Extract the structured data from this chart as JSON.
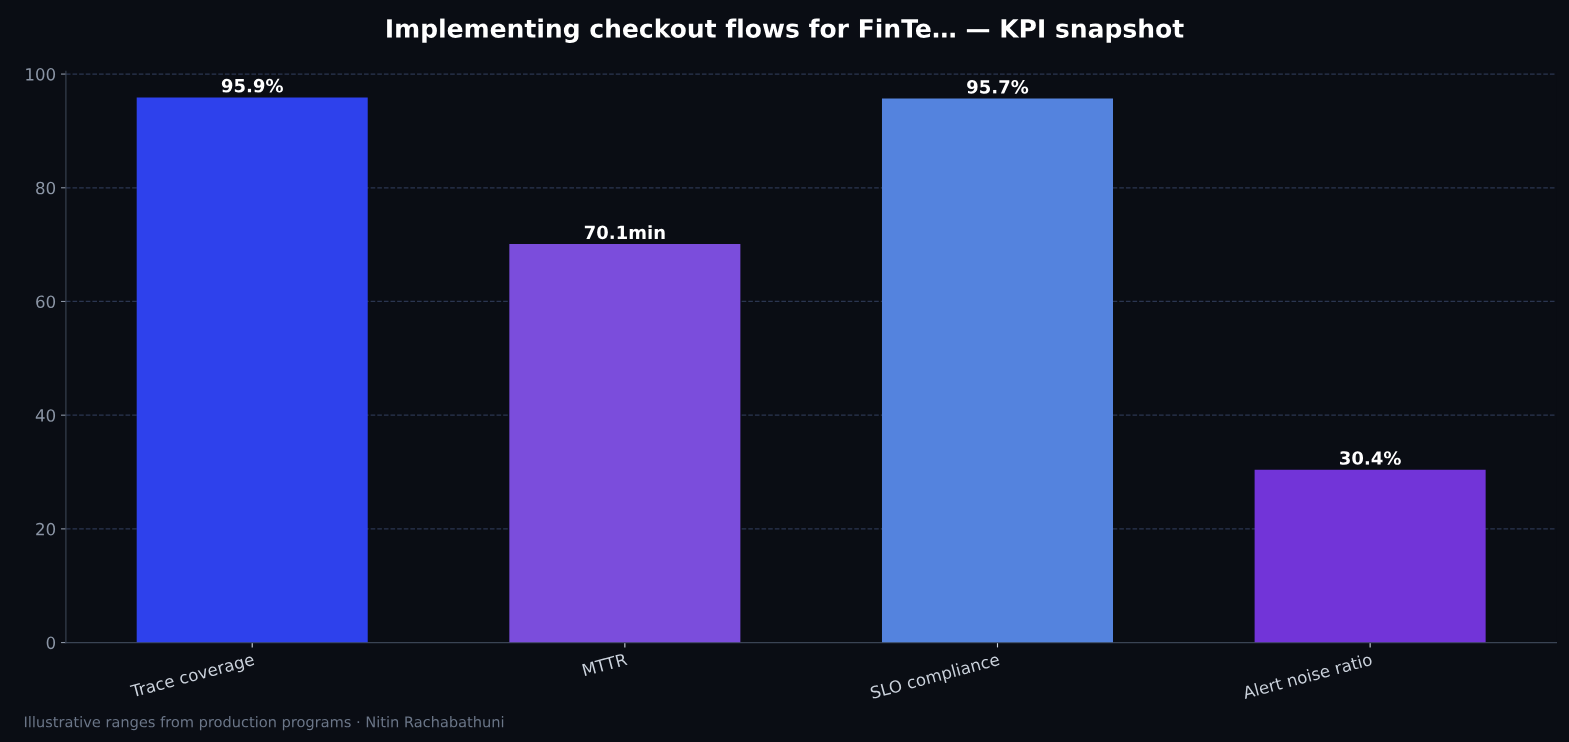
{
  "chart_data": {
    "type": "bar",
    "title": "Implementing checkout flows for FinTe… — KPI snapshot",
    "categories": [
      "Trace coverage",
      "MTTR",
      "SLO compliance",
      "Alert noise ratio"
    ],
    "values": [
      95.9,
      70.1,
      95.7,
      30.4
    ],
    "value_labels": [
      "95.9%",
      "70.1min",
      "95.7%",
      "30.4%"
    ],
    "colors": [
      "#2e41ec",
      "#7b4ddc",
      "#5483de",
      "#7234d8"
    ],
    "ylim": [
      0,
      100.5
    ],
    "yticks": [
      0,
      20,
      40,
      60,
      80,
      100
    ],
    "grid": "y",
    "legend": false,
    "annotations": [
      "Illustrative ranges from production programs · Nitin Rachabathuni"
    ]
  }
}
